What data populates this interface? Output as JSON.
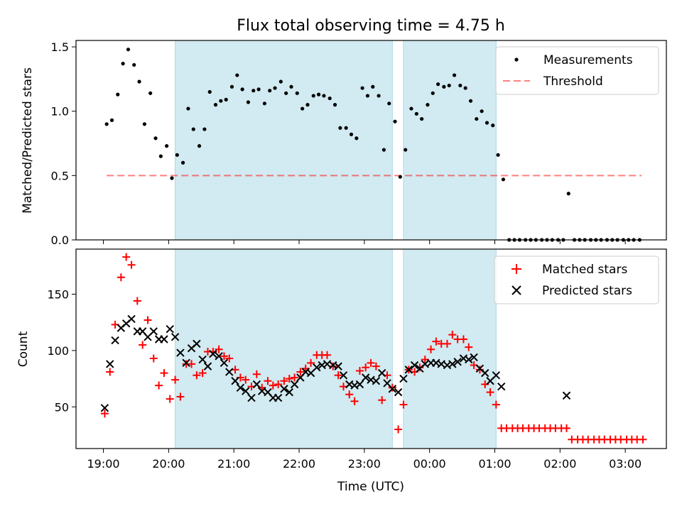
{
  "chart_data": {
    "type": "scatter",
    "title": "Flux total observing time = 4.75 h",
    "xlabel": "Time (UTC)",
    "x_ticks": [
      "19:00",
      "20:00",
      "21:00",
      "22:00",
      "23:00",
      "00:00",
      "01:00",
      "02:00",
      "03:00"
    ],
    "x_range_hours": [
      18.58,
      27.63
    ],
    "shaded_intervals_hours": [
      [
        20.1,
        23.43
      ],
      [
        23.6,
        25.02
      ]
    ],
    "shade_color": "#add8e6",
    "top": {
      "ylabel": "Matched/Predicted stars",
      "ylim": [
        0,
        1.55
      ],
      "yticks": [
        "0.0",
        "0.5",
        "1.0",
        "1.5"
      ],
      "threshold": 0.5,
      "threshold_x_range_hours": [
        19.05,
        27.25
      ],
      "legend": [
        "Measurements",
        "Threshold"
      ],
      "legend_position": "upper right",
      "measurements": [
        [
          19.05,
          0.9
        ],
        [
          19.13,
          0.93
        ],
        [
          19.22,
          1.13
        ],
        [
          19.3,
          1.37
        ],
        [
          19.38,
          1.48
        ],
        [
          19.47,
          1.36
        ],
        [
          19.55,
          1.23
        ],
        [
          19.63,
          0.9
        ],
        [
          19.72,
          1.14
        ],
        [
          19.8,
          0.79
        ],
        [
          19.88,
          0.65
        ],
        [
          19.97,
          0.73
        ],
        [
          20.05,
          0.48
        ],
        [
          20.13,
          0.66
        ],
        [
          20.22,
          0.6
        ],
        [
          20.3,
          1.02
        ],
        [
          20.38,
          0.86
        ],
        [
          20.47,
          0.73
        ],
        [
          20.55,
          0.86
        ],
        [
          20.63,
          1.15
        ],
        [
          20.72,
          1.05
        ],
        [
          20.8,
          1.08
        ],
        [
          20.88,
          1.09
        ],
        [
          20.97,
          1.19
        ],
        [
          21.05,
          1.28
        ],
        [
          21.13,
          1.17
        ],
        [
          21.22,
          1.07
        ],
        [
          21.3,
          1.16
        ],
        [
          21.38,
          1.17
        ],
        [
          21.47,
          1.06
        ],
        [
          21.55,
          1.16
        ],
        [
          21.63,
          1.18
        ],
        [
          21.72,
          1.23
        ],
        [
          21.8,
          1.14
        ],
        [
          21.88,
          1.19
        ],
        [
          21.97,
          1.14
        ],
        [
          22.05,
          1.02
        ],
        [
          22.13,
          1.05
        ],
        [
          22.22,
          1.12
        ],
        [
          22.3,
          1.13
        ],
        [
          22.38,
          1.12
        ],
        [
          22.47,
          1.1
        ],
        [
          22.55,
          1.05
        ],
        [
          22.63,
          0.87
        ],
        [
          22.72,
          0.87
        ],
        [
          22.8,
          0.82
        ],
        [
          22.88,
          0.79
        ],
        [
          22.97,
          1.18
        ],
        [
          23.05,
          1.12
        ],
        [
          23.13,
          1.19
        ],
        [
          23.22,
          1.12
        ],
        [
          23.3,
          0.7
        ],
        [
          23.38,
          1.06
        ],
        [
          23.47,
          0.92
        ],
        [
          23.55,
          0.49
        ],
        [
          23.63,
          0.7
        ],
        [
          23.72,
          1.02
        ],
        [
          23.8,
          0.98
        ],
        [
          23.88,
          0.94
        ],
        [
          23.97,
          1.05
        ],
        [
          24.05,
          1.14
        ],
        [
          24.13,
          1.21
        ],
        [
          24.22,
          1.19
        ],
        [
          24.3,
          1.2
        ],
        [
          24.38,
          1.28
        ],
        [
          24.47,
          1.2
        ],
        [
          24.55,
          1.18
        ],
        [
          24.63,
          1.08
        ],
        [
          24.72,
          0.94
        ],
        [
          24.8,
          1.0
        ],
        [
          24.88,
          0.91
        ],
        [
          24.97,
          0.89
        ],
        [
          25.05,
          0.66
        ],
        [
          25.13,
          0.47
        ],
        [
          25.22,
          0.0
        ],
        [
          25.3,
          0.0
        ],
        [
          25.38,
          0.0
        ],
        [
          25.47,
          0.0
        ],
        [
          25.55,
          0.0
        ],
        [
          25.63,
          0.0
        ],
        [
          25.72,
          0.0
        ],
        [
          25.8,
          0.0
        ],
        [
          25.88,
          0.0
        ],
        [
          25.97,
          0.0
        ],
        [
          26.05,
          0.0
        ],
        [
          26.13,
          0.36
        ],
        [
          26.22,
          0.0
        ],
        [
          26.3,
          0.0
        ],
        [
          26.38,
          0.0
        ],
        [
          26.47,
          0.0
        ],
        [
          26.55,
          0.0
        ],
        [
          26.63,
          0.0
        ],
        [
          26.72,
          0.0
        ],
        [
          26.8,
          0.0
        ],
        [
          26.88,
          0.0
        ],
        [
          26.97,
          0.0
        ],
        [
          27.05,
          0.0
        ],
        [
          27.13,
          0.0
        ],
        [
          27.22,
          0.0
        ]
      ]
    },
    "bottom": {
      "ylabel": "Count",
      "ylim": [
        13,
        190
      ],
      "yticks": [
        "50",
        "100",
        "150"
      ],
      "legend": [
        "Matched stars",
        "Predicted stars"
      ],
      "legend_position": "upper right",
      "series": [
        {
          "name": "Matched stars",
          "color": "#ff0000",
          "marker": "plus",
          "points": [
            [
              19.02,
              44
            ],
            [
              19.1,
              81
            ],
            [
              19.18,
              123
            ],
            [
              19.27,
              165
            ],
            [
              19.35,
              183
            ],
            [
              19.43,
              176
            ],
            [
              19.52,
              144
            ],
            [
              19.6,
              105
            ],
            [
              19.68,
              127
            ],
            [
              19.77,
              93
            ],
            [
              19.85,
              69
            ],
            [
              19.93,
              80
            ],
            [
              20.02,
              57
            ],
            [
              20.1,
              74
            ],
            [
              20.18,
              59
            ],
            [
              20.27,
              88
            ],
            [
              20.35,
              88
            ],
            [
              20.43,
              78
            ],
            [
              20.52,
              80
            ],
            [
              20.6,
              99
            ],
            [
              20.68,
              99
            ],
            [
              20.77,
              101
            ],
            [
              20.85,
              95
            ],
            [
              20.93,
              93
            ],
            [
              21.02,
              83
            ],
            [
              21.1,
              76
            ],
            [
              21.18,
              74
            ],
            [
              21.27,
              68
            ],
            [
              21.35,
              79
            ],
            [
              21.43,
              67
            ],
            [
              21.52,
              73
            ],
            [
              21.6,
              69
            ],
            [
              21.68,
              70
            ],
            [
              21.77,
              73
            ],
            [
              21.85,
              75
            ],
            [
              21.93,
              76
            ],
            [
              22.02,
              81
            ],
            [
              22.1,
              84
            ],
            [
              22.18,
              89
            ],
            [
              22.27,
              96
            ],
            [
              22.35,
              96
            ],
            [
              22.43,
              96
            ],
            [
              22.52,
              86
            ],
            [
              22.6,
              78
            ],
            [
              22.68,
              68
            ],
            [
              22.77,
              61
            ],
            [
              22.85,
              55
            ],
            [
              22.93,
              82
            ],
            [
              23.02,
              85
            ],
            [
              23.1,
              89
            ],
            [
              23.18,
              86
            ],
            [
              23.27,
              56
            ],
            [
              23.35,
              78
            ],
            [
              23.43,
              67
            ],
            [
              23.52,
              30
            ],
            [
              23.6,
              52
            ],
            [
              23.68,
              83
            ],
            [
              23.77,
              81
            ],
            [
              23.85,
              85
            ],
            [
              23.93,
              92
            ],
            [
              24.02,
              101
            ],
            [
              24.1,
              108
            ],
            [
              24.18,
              106
            ],
            [
              24.27,
              106
            ],
            [
              24.35,
              114
            ],
            [
              24.43,
              110
            ],
            [
              24.52,
              110
            ],
            [
              24.6,
              103
            ],
            [
              24.68,
              87
            ],
            [
              24.77,
              83
            ],
            [
              24.85,
              70
            ],
            [
              24.93,
              63
            ],
            [
              25.02,
              52
            ],
            [
              25.1,
              31
            ],
            [
              25.18,
              31
            ],
            [
              25.27,
              31
            ],
            [
              25.35,
              31
            ],
            [
              25.43,
              31
            ],
            [
              25.52,
              31
            ],
            [
              25.6,
              31
            ],
            [
              25.68,
              31
            ],
            [
              25.77,
              31
            ],
            [
              25.85,
              31
            ],
            [
              25.93,
              31
            ],
            [
              26.02,
              31
            ],
            [
              26.1,
              31
            ],
            [
              26.18,
              21
            ],
            [
              26.27,
              21
            ],
            [
              26.35,
              21
            ],
            [
              26.43,
              21
            ],
            [
              26.52,
              21
            ],
            [
              26.6,
              21
            ],
            [
              26.68,
              21
            ],
            [
              26.77,
              21
            ],
            [
              26.85,
              21
            ],
            [
              26.93,
              21
            ],
            [
              27.02,
              21
            ],
            [
              27.1,
              21
            ],
            [
              27.18,
              21
            ],
            [
              27.27,
              21
            ]
          ]
        },
        {
          "name": "Predicted stars",
          "color": "#000000",
          "marker": "x",
          "points": [
            [
              19.02,
              49
            ],
            [
              19.1,
              88
            ],
            [
              19.18,
              109
            ],
            [
              19.27,
              120
            ],
            [
              19.35,
              124
            ],
            [
              19.43,
              128
            ],
            [
              19.52,
              117
            ],
            [
              19.6,
              117
            ],
            [
              19.68,
              112
            ],
            [
              19.77,
              117
            ],
            [
              19.85,
              110
            ],
            [
              19.93,
              110
            ],
            [
              20.02,
              119
            ],
            [
              20.1,
              112
            ],
            [
              20.18,
              98
            ],
            [
              20.27,
              89
            ],
            [
              20.35,
              102
            ],
            [
              20.43,
              106
            ],
            [
              20.52,
              92
            ],
            [
              20.6,
              86
            ],
            [
              20.68,
              97
            ],
            [
              20.77,
              95
            ],
            [
              20.85,
              89
            ],
            [
              20.93,
              81
            ],
            [
              21.02,
              73
            ],
            [
              21.1,
              67
            ],
            [
              21.18,
              64
            ],
            [
              21.27,
              58
            ],
            [
              21.35,
              70
            ],
            [
              21.43,
              64
            ],
            [
              21.52,
              63
            ],
            [
              21.6,
              58
            ],
            [
              21.68,
              58
            ],
            [
              21.77,
              66
            ],
            [
              21.85,
              63
            ],
            [
              21.93,
              70
            ],
            [
              22.02,
              76
            ],
            [
              22.1,
              81
            ],
            [
              22.18,
              80
            ],
            [
              22.27,
              85
            ],
            [
              22.35,
              87
            ],
            [
              22.43,
              88
            ],
            [
              22.52,
              87
            ],
            [
              22.6,
              86
            ],
            [
              22.68,
              78
            ],
            [
              22.77,
              70
            ],
            [
              22.85,
              69
            ],
            [
              22.93,
              70
            ],
            [
              23.02,
              76
            ],
            [
              23.1,
              74
            ],
            [
              23.18,
              73
            ],
            [
              23.27,
              80
            ],
            [
              23.35,
              71
            ],
            [
              23.43,
              66
            ],
            [
              23.52,
              63
            ],
            [
              23.6,
              75
            ],
            [
              23.68,
              83
            ],
            [
              23.77,
              87
            ],
            [
              23.85,
              84
            ],
            [
              23.93,
              88
            ],
            [
              24.02,
              89
            ],
            [
              24.1,
              89
            ],
            [
              24.18,
              88
            ],
            [
              24.27,
              87
            ],
            [
              24.35,
              88
            ],
            [
              24.43,
              90
            ],
            [
              24.52,
              93
            ],
            [
              24.6,
              92
            ],
            [
              24.68,
              94
            ],
            [
              24.77,
              84
            ],
            [
              24.85,
              80
            ],
            [
              24.93,
              73
            ],
            [
              25.02,
              78
            ],
            [
              25.1,
              68
            ],
            [
              26.1,
              60
            ]
          ]
        }
      ]
    }
  }
}
